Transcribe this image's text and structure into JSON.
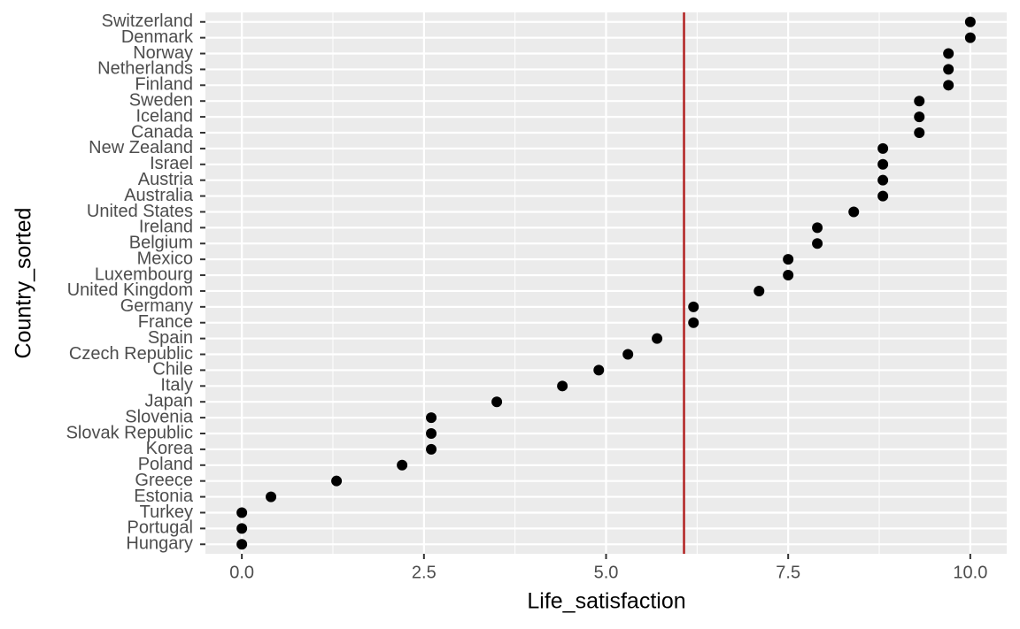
{
  "chart_data": {
    "type": "dot",
    "x_label": "Life_satisfaction",
    "y_label": "Country_sorted",
    "categories": [
      "Switzerland",
      "Denmark",
      "Norway",
      "Netherlands",
      "Finland",
      "Sweden",
      "Iceland",
      "Canada",
      "New Zealand",
      "Israel",
      "Austria",
      "Australia",
      "United States",
      "Ireland",
      "Belgium",
      "Mexico",
      "Luxembourg",
      "United Kingdom",
      "Germany",
      "France",
      "Spain",
      "Czech Republic",
      "Chile",
      "Italy",
      "Japan",
      "Slovenia",
      "Slovak Republic",
      "Korea",
      "Poland",
      "Greece",
      "Estonia",
      "Turkey",
      "Portugal",
      "Hungary"
    ],
    "values": [
      10.0,
      10.0,
      9.7,
      9.7,
      9.7,
      9.3,
      9.3,
      9.3,
      8.8,
      8.8,
      8.8,
      8.8,
      8.4,
      7.9,
      7.9,
      7.5,
      7.5,
      7.1,
      6.2,
      6.2,
      5.7,
      5.3,
      4.9,
      4.4,
      3.5,
      2.6,
      2.6,
      2.6,
      2.2,
      1.3,
      0.4,
      0.0,
      0.0,
      0.0
    ],
    "color": "#000000",
    "reference_line": {
      "value": 6.07,
      "color": "#b22222"
    },
    "xlim": [
      -0.5,
      10.5
    ],
    "xticks": [
      {
        "value": 0,
        "label": "0.0"
      },
      2.5,
      {
        "value": 5,
        "label": "5.0"
      },
      7.5,
      {
        "value": 10,
        "label": "10.0"
      }
    ],
    "grid": true
  }
}
